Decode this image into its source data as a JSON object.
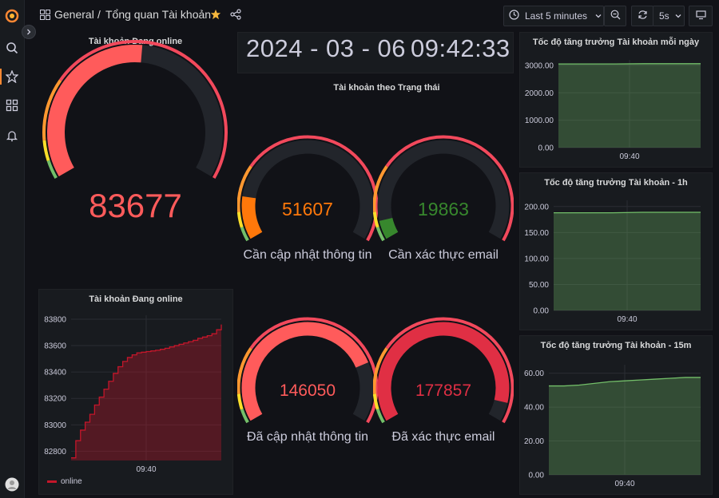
{
  "nav": {
    "breadcrumb_root": "General",
    "breadcrumb_sep": "/",
    "dashboard_title": "Tổng quan Tài khoản"
  },
  "toolbar": {
    "time_range": "Last 5 minutes",
    "refresh_interval": "5s"
  },
  "clock": {
    "date": "2024 - 03 - 06",
    "time": "09:42:33"
  },
  "section_title": "Tài khoản theo Trạng thái",
  "gauges": [
    {
      "title": "Tài khoản Đang online",
      "value": "83677",
      "label": "",
      "fraction": 0.52,
      "color": "#ff5b5b"
    },
    {
      "title": "",
      "value": "51607",
      "label": "Cần cập nhật thông tin",
      "fraction": 0.16,
      "color": "#ff780a"
    },
    {
      "title": "",
      "value": "19863",
      "label": "Cần xác thực email",
      "fraction": 0.07,
      "color": "#37872d"
    },
    {
      "title": "",
      "value": "146050",
      "label": "Đã cập nhật thông tin",
      "fraction": 0.78,
      "color": "#ff5b5b"
    },
    {
      "title": "",
      "value": "177857",
      "label": "Đã xác thực email",
      "fraction": 0.93,
      "color": "#e02f44"
    }
  ],
  "chart_data": [
    {
      "type": "area",
      "title": "Tài khoản Đang online",
      "series": [
        {
          "name": "online",
          "x": [
            0,
            1,
            2,
            3,
            4,
            5,
            6,
            7,
            8,
            9,
            10,
            11,
            12,
            13,
            14,
            15,
            16,
            17,
            18,
            19,
            20,
            21,
            22,
            23,
            24,
            25,
            26,
            27,
            28,
            29,
            30,
            31,
            32
          ],
          "values": [
            82750,
            82880,
            82960,
            83020,
            83080,
            83150,
            83210,
            83270,
            83330,
            83390,
            83440,
            83480,
            83510,
            83530,
            83545,
            83550,
            83555,
            83560,
            83565,
            83572,
            83580,
            83590,
            83600,
            83610,
            83620,
            83630,
            83640,
            83655,
            83665,
            83675,
            83690,
            83720,
            83760
          ]
        }
      ],
      "xtick_labels": [
        "09:40"
      ],
      "yticks": [
        82800,
        83000,
        83200,
        83400,
        83600,
        83800
      ],
      "ylim": [
        82730,
        83830
      ],
      "color": "#c4162a",
      "legend": "bottom-left"
    },
    {
      "type": "area",
      "title": "Tốc độ tăng trưởng Tài khoản mỗi ngày",
      "series": [
        {
          "values": [
            3050,
            3050,
            3050,
            3060,
            3060,
            3060
          ]
        }
      ],
      "xtick_labels": [
        "09:40"
      ],
      "yticks": [
        "0.00",
        "1000.00",
        "2000.00",
        "3000.00"
      ],
      "ylim": [
        0,
        3200
      ],
      "color": "#73bf69"
    },
    {
      "type": "area",
      "title": "Tốc độ tăng trưởng Tài khoản - 1h",
      "series": [
        {
          "values": [
            188,
            188,
            188,
            189,
            189,
            189
          ]
        }
      ],
      "xtick_labels": [
        "09:40"
      ],
      "yticks": [
        "0.00",
        "50.00",
        "100.00",
        "150.00",
        "200.00"
      ],
      "ylim": [
        0,
        212
      ],
      "color": "#73bf69"
    },
    {
      "type": "area",
      "title": "Tốc độ tăng trưởng Tài khoản - 15m",
      "series": [
        {
          "values": [
            52.5,
            52.5,
            53,
            54,
            55,
            55.5,
            56,
            56.5,
            57,
            57.5,
            57.5
          ]
        }
      ],
      "xtick_labels": [
        "09:40"
      ],
      "yticks": [
        "0.00",
        "20.00",
        "40.00",
        "60.00"
      ],
      "ylim": [
        0,
        65
      ],
      "color": "#73bf69"
    }
  ]
}
